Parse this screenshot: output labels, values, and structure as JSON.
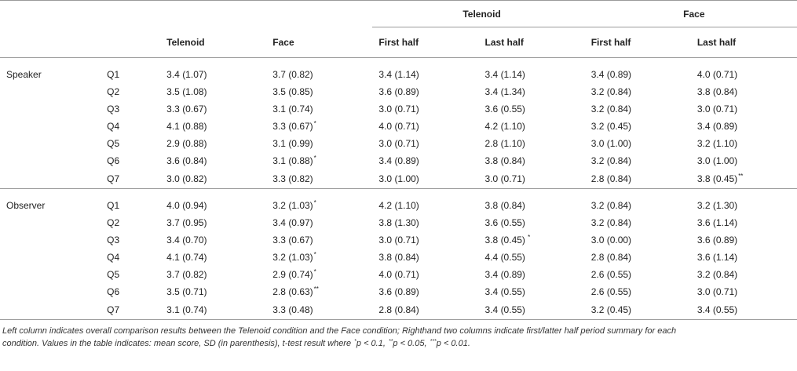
{
  "header": {
    "group_telenoid": "Telenoid",
    "group_face": "Face",
    "columns": [
      "Telenoid",
      "Face",
      "First half",
      "Last half",
      "First half",
      "Last half"
    ]
  },
  "sections": [
    {
      "name": "Speaker",
      "rows": [
        {
          "q": "Q1",
          "cells": [
            {
              "v": "3.4 (1.07)",
              "s": ""
            },
            {
              "v": "3.7 (0.82)",
              "s": ""
            },
            {
              "v": "3.4 (1.14)",
              "s": ""
            },
            {
              "v": "3.4 (1.14)",
              "s": ""
            },
            {
              "v": "3.4 (0.89)",
              "s": ""
            },
            {
              "v": "4.0 (0.71)",
              "s": ""
            }
          ]
        },
        {
          "q": "Q2",
          "cells": [
            {
              "v": "3.5 (1.08)",
              "s": ""
            },
            {
              "v": "3.5 (0.85)",
              "s": ""
            },
            {
              "v": "3.6 (0.89)",
              "s": ""
            },
            {
              "v": "3.4 (1.34)",
              "s": ""
            },
            {
              "v": "3.2 (0.84)",
              "s": ""
            },
            {
              "v": "3.8 (0.84)",
              "s": ""
            }
          ]
        },
        {
          "q": "Q3",
          "cells": [
            {
              "v": "3.3 (0.67)",
              "s": ""
            },
            {
              "v": "3.1 (0.74)",
              "s": ""
            },
            {
              "v": "3.0 (0.71)",
              "s": ""
            },
            {
              "v": "3.6 (0.55)",
              "s": ""
            },
            {
              "v": "3.2 (0.84)",
              "s": ""
            },
            {
              "v": "3.0 (0.71)",
              "s": ""
            }
          ]
        },
        {
          "q": "Q4",
          "cells": [
            {
              "v": "4.1 (0.88)",
              "s": ""
            },
            {
              "v": "3.3 (0.67)",
              "s": "*"
            },
            {
              "v": "4.0 (0.71)",
              "s": ""
            },
            {
              "v": "4.2 (1.10)",
              "s": ""
            },
            {
              "v": "3.2 (0.45)",
              "s": ""
            },
            {
              "v": "3.4 (0.89)",
              "s": ""
            }
          ]
        },
        {
          "q": "Q5",
          "cells": [
            {
              "v": "2.9 (0.88)",
              "s": ""
            },
            {
              "v": "3.1 (0.99)",
              "s": ""
            },
            {
              "v": "3.0 (0.71)",
              "s": ""
            },
            {
              "v": "2.8 (1.10)",
              "s": ""
            },
            {
              "v": "3.0 (1.00)",
              "s": ""
            },
            {
              "v": "3.2 (1.10)",
              "s": ""
            }
          ]
        },
        {
          "q": "Q6",
          "cells": [
            {
              "v": "3.6 (0.84)",
              "s": ""
            },
            {
              "v": "3.1 (0.88)",
              "s": "*"
            },
            {
              "v": "3.4 (0.89)",
              "s": ""
            },
            {
              "v": "3.8 (0.84)",
              "s": ""
            },
            {
              "v": "3.2 (0.84)",
              "s": ""
            },
            {
              "v": "3.0 (1.00)",
              "s": ""
            }
          ]
        },
        {
          "q": "Q7",
          "cells": [
            {
              "v": "3.0 (0.82)",
              "s": ""
            },
            {
              "v": "3.3 (0.82)",
              "s": ""
            },
            {
              "v": "3.0 (1.00)",
              "s": ""
            },
            {
              "v": "3.0 (0.71)",
              "s": ""
            },
            {
              "v": "2.8 (0.84)",
              "s": ""
            },
            {
              "v": "3.8 (0.45)",
              "s": "**"
            }
          ]
        }
      ]
    },
    {
      "name": "Observer",
      "rows": [
        {
          "q": "Q1",
          "cells": [
            {
              "v": "4.0 (0.94)",
              "s": ""
            },
            {
              "v": "3.2 (1.03)",
              "s": "*"
            },
            {
              "v": "4.2 (1.10)",
              "s": ""
            },
            {
              "v": "3.8 (0.84)",
              "s": ""
            },
            {
              "v": "3.2 (0.84)",
              "s": ""
            },
            {
              "v": "3.2 (1.30)",
              "s": ""
            }
          ]
        },
        {
          "q": "Q2",
          "cells": [
            {
              "v": "3.7 (0.95)",
              "s": ""
            },
            {
              "v": "3.4 (0.97)",
              "s": ""
            },
            {
              "v": "3.8 (1.30)",
              "s": ""
            },
            {
              "v": "3.6 (0.55)",
              "s": ""
            },
            {
              "v": "3.2 (0.84)",
              "s": ""
            },
            {
              "v": "3.6 (1.14)",
              "s": ""
            }
          ]
        },
        {
          "q": "Q3",
          "cells": [
            {
              "v": "3.4 (0.70)",
              "s": ""
            },
            {
              "v": "3.3 (0.67)",
              "s": ""
            },
            {
              "v": "3.0 (0.71)",
              "s": ""
            },
            {
              "v": "3.8 (0.45)",
              "s": " *"
            },
            {
              "v": "3.0 (0.00)",
              "s": ""
            },
            {
              "v": "3.6 (0.89)",
              "s": ""
            }
          ]
        },
        {
          "q": "Q4",
          "cells": [
            {
              "v": "4.1 (0.74)",
              "s": ""
            },
            {
              "v": "3.2 (1.03)",
              "s": "*"
            },
            {
              "v": "3.8 (0.84)",
              "s": ""
            },
            {
              "v": "4.4 (0.55)",
              "s": ""
            },
            {
              "v": "2.8 (0.84)",
              "s": ""
            },
            {
              "v": "3.6 (1.14)",
              "s": ""
            }
          ]
        },
        {
          "q": "Q5",
          "cells": [
            {
              "v": "3.7 (0.82)",
              "s": ""
            },
            {
              "v": "2.9 (0.74)",
              "s": "*"
            },
            {
              "v": "4.0 (0.71)",
              "s": ""
            },
            {
              "v": "3.4 (0.89)",
              "s": ""
            },
            {
              "v": "2.6 (0.55)",
              "s": ""
            },
            {
              "v": "3.2 (0.84)",
              "s": ""
            }
          ]
        },
        {
          "q": "Q6",
          "cells": [
            {
              "v": "3.5 (0.71)",
              "s": ""
            },
            {
              "v": "2.8 (0.63)",
              "s": "**"
            },
            {
              "v": "3.6 (0.89)",
              "s": ""
            },
            {
              "v": "3.4 (0.55)",
              "s": ""
            },
            {
              "v": "2.6 (0.55)",
              "s": ""
            },
            {
              "v": "3.0 (0.71)",
              "s": ""
            }
          ]
        },
        {
          "q": "Q7",
          "cells": [
            {
              "v": "3.1 (0.74)",
              "s": ""
            },
            {
              "v": "3.3 (0.48)",
              "s": ""
            },
            {
              "v": "2.8 (0.84)",
              "s": ""
            },
            {
              "v": "3.4 (0.55)",
              "s": ""
            },
            {
              "v": "3.2 (0.45)",
              "s": ""
            },
            {
              "v": "3.4 (0.55)",
              "s": ""
            }
          ]
        }
      ]
    }
  ],
  "footnote": {
    "line1": "Left column indicates overall comparison results between the Telenoid condition and the Face condition; Righthand two columns indicate first/latter half period summary for each",
    "line2_a": "condition. Values in the table indicates: mean score, SD (in parenthesis), t-test result where ",
    "sup1": "*",
    "part1": "p < 0.1, ",
    "sup2": "**",
    "part2": "p < 0.05, ",
    "sup3": "***",
    "part3": "p < 0.01."
  }
}
